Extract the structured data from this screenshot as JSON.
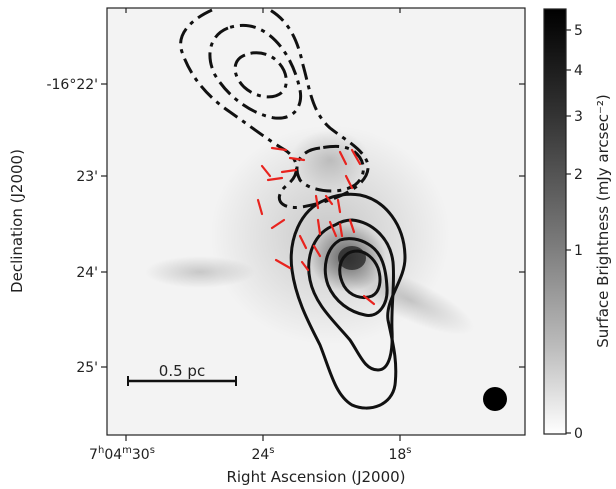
{
  "chart_data": {
    "type": "heatmap",
    "title": "",
    "xlabel": "Right Ascension (J2000)",
    "ylabel": "Declination (J2000)",
    "x_ticks": [
      {
        "sup_h": "h",
        "sup_m": "m",
        "sup_s": "s",
        "text": "7",
        "mid": "04",
        "sec": "30",
        "label": "7h04m30s"
      },
      {
        "sec": "24",
        "label": "24s"
      },
      {
        "sec": "18",
        "label": "18s"
      }
    ],
    "y_ticks": [
      "-16°22'",
      "23'",
      "24'",
      "25'"
    ],
    "colorbar": {
      "label": "Surface Brightness (mJy arcsec⁻²)",
      "ticks": [
        "5",
        "4",
        "3",
        "2",
        "1",
        "0"
      ],
      "scale": "sqrt",
      "range": [
        0,
        5.3
      ],
      "colormap": "gray_r"
    },
    "scale_bar": {
      "label": "0.5 pc"
    },
    "beam": "filled-circle",
    "contours": [
      {
        "name": "",
        "style": "dashed"
      },
      {
        "name": "",
        "style": "solid"
      }
    ],
    "polarization_vectors": {
      "color": "#e8231e",
      "count": 22
    }
  },
  "colors": {
    "contour": "#111111",
    "vectors": "#e8231e",
    "axes": "#222222"
  }
}
